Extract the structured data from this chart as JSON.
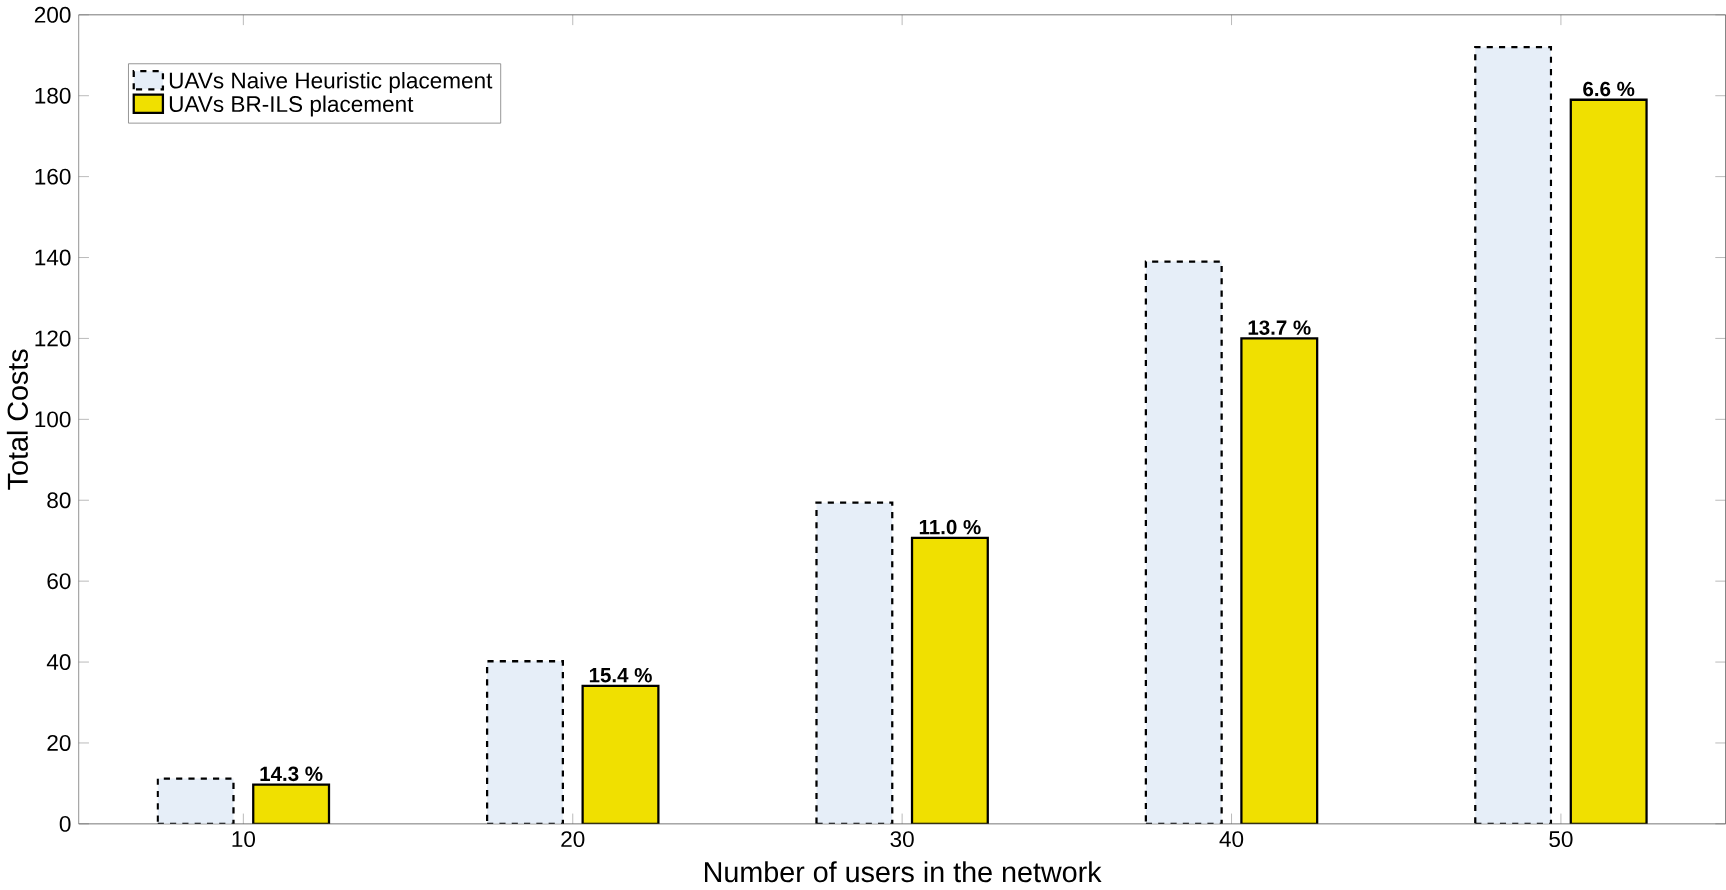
{
  "chart_data": {
    "type": "bar",
    "xlabel": "Number of users in the network",
    "ylabel": "Total Costs",
    "categories": [
      "10",
      "20",
      "30",
      "40",
      "50"
    ],
    "series": [
      {
        "name": "UAVs Naive Heuristic placement",
        "color": "#e6eef8",
        "line_style": "dashed",
        "values": [
          11.2,
          40.2,
          79.4,
          139,
          192
        ]
      },
      {
        "name": "UAVs BR-ILS placement",
        "color": "#f0e000",
        "line_style": "solid",
        "values": [
          9.7,
          34.1,
          70.7,
          120,
          179
        ]
      }
    ],
    "annotations": [
      {
        "text": "14.3 %",
        "x": "10",
        "y": 9.7
      },
      {
        "text": "15.4 %",
        "x": "20",
        "y": 34.1
      },
      {
        "text": "11.0 %",
        "x": "30",
        "y": 70.7
      },
      {
        "text": "13.7 %",
        "x": "40",
        "y": 120
      },
      {
        "text": "6.6 %",
        "x": "50",
        "y": 179
      }
    ],
    "ylim": [
      0,
      200
    ],
    "yticks": [
      0,
      20,
      40,
      60,
      80,
      100,
      120,
      140,
      160,
      180,
      200
    ],
    "grid": false,
    "legend": "top left"
  }
}
